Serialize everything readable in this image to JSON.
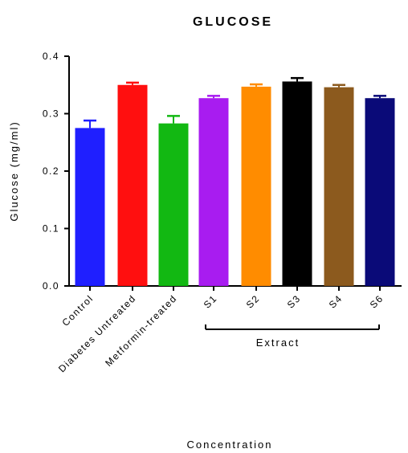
{
  "chart_data": {
    "type": "bar",
    "title": "GLUCOSE",
    "xlabel": "Concentration",
    "ylabel": "Glucose (mg/ml)",
    "ylim": [
      0,
      0.4
    ],
    "yticks": [
      "0.0",
      "0.1",
      "0.2",
      "0.3",
      "0.4"
    ],
    "categories": [
      "Control",
      "Diabetes Untreated",
      "Metformin-treated",
      "S1",
      "S2",
      "S3",
      "S4",
      "S6"
    ],
    "values": [
      0.275,
      0.35,
      0.283,
      0.327,
      0.347,
      0.356,
      0.346,
      0.327
    ],
    "errors": [
      0.013,
      0.004,
      0.013,
      0.004,
      0.004,
      0.006,
      0.004,
      0.004
    ],
    "colors": [
      "#1f1fff",
      "#ff0f0f",
      "#12b812",
      "#a81cf0",
      "#ff8c00",
      "#000000",
      "#8c5a1e",
      "#0a0a78"
    ],
    "group_label": "Extract",
    "legend": "none",
    "grid": false
  }
}
